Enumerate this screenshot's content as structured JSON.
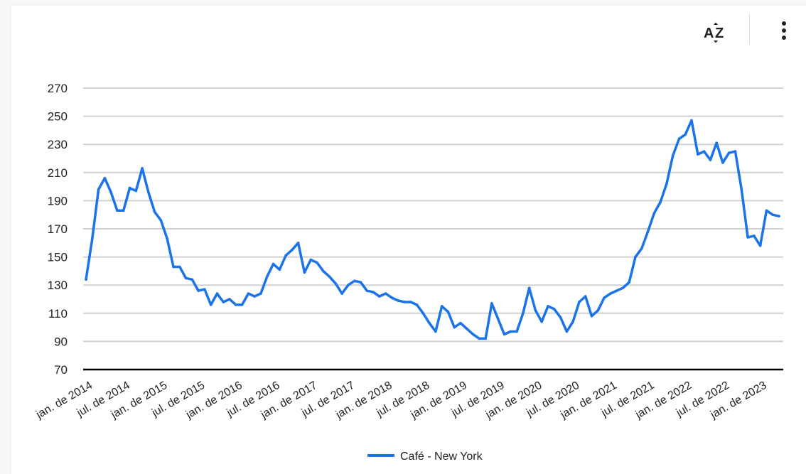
{
  "toolbar": {
    "sort_icon": "sort-az-icon",
    "menu_icon": "more-vert-icon"
  },
  "colors": {
    "series": "#1a73e8",
    "grid": "#d0d0d0",
    "baseline": "#000000",
    "text": "#222222"
  },
  "chart_data": {
    "type": "line",
    "title": "",
    "xlabel": "",
    "ylabel": "",
    "ylim": [
      70,
      270
    ],
    "yticks": [
      70,
      90,
      110,
      130,
      150,
      170,
      190,
      210,
      230,
      250,
      270
    ],
    "xticks": [
      "jan. de 2014",
      "jul. de 2014",
      "jan. de 2015",
      "jul. de 2015",
      "jan. de 2016",
      "jul. de 2016",
      "jan. de 2017",
      "jul. de 2017",
      "jan. de 2018",
      "jul. de 2018",
      "jan. de 2019",
      "jul. de 2019",
      "jan. de 2020",
      "jul. de 2020",
      "jan. de 2021",
      "jul. de 2021",
      "jan. de 2022",
      "jul. de 2022",
      "jan. de 2023"
    ],
    "grid": true,
    "legend": "bottom",
    "series": [
      {
        "name": "Café - New York",
        "start": "jan. de 2014",
        "values": [
          134,
          163,
          198,
          206,
          196,
          183,
          183,
          199,
          197,
          213,
          196,
          182,
          176,
          163,
          143,
          143,
          135,
          134,
          126,
          127,
          116,
          124,
          118,
          120,
          116,
          116,
          124,
          122,
          124,
          136,
          145,
          141,
          151,
          155,
          160,
          139,
          148,
          146,
          140,
          136,
          131,
          124,
          130,
          133,
          132,
          126,
          125,
          122,
          124,
          121,
          119,
          118,
          118,
          116,
          110,
          103,
          97,
          115,
          111,
          100,
          103,
          99,
          95,
          92,
          92,
          117,
          106,
          95,
          97,
          97,
          110,
          128,
          112,
          104,
          115,
          113,
          107,
          97,
          104,
          118,
          122,
          108,
          112,
          121,
          124,
          126,
          128,
          132,
          150,
          156,
          168,
          181,
          189,
          202,
          222,
          234,
          237,
          247,
          223,
          225,
          219,
          231,
          217,
          224,
          225,
          198,
          164,
          165,
          158,
          183,
          180,
          179
        ]
      }
    ]
  }
}
